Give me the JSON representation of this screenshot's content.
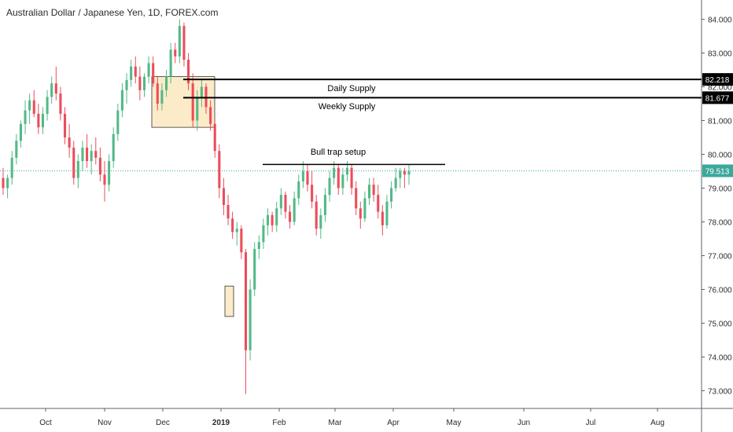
{
  "chart_title": "Australian Dollar / Japanese Yen, 1D, FOREX.com",
  "colors": {
    "up": "#53b987",
    "down": "#eb4d5c",
    "zone_fill": "#fbe8c0",
    "line": "#000000",
    "last_price_line": "#3aa89b",
    "axis_text": "#2b2b2b"
  },
  "chart_data": {
    "type": "candlestick",
    "title": "Australian Dollar / Japanese Yen, 1D, FOREX.com",
    "ylim": [
      72.3,
      84.45
    ],
    "y_ticks": [
      "84.000",
      "83.000",
      "82.000",
      "81.000",
      "80.000",
      "79.000",
      "78.000",
      "77.000",
      "76.000",
      "75.000",
      "74.000",
      "73.000"
    ],
    "x_ticks": [
      "Oct",
      "Nov",
      "Dec",
      "2019",
      "Feb",
      "Mar",
      "Apr",
      "May",
      "Jun",
      "Jul",
      "Aug"
    ],
    "grid": false,
    "price_labels": [
      {
        "text": "82.218",
        "value": 82.218,
        "style": "dark"
      },
      {
        "text": "81.677",
        "value": 81.677,
        "style": "dark"
      },
      {
        "text": "79.513",
        "value": 79.513,
        "style": "teal"
      }
    ],
    "annotations": [
      {
        "text": "Daily Supply",
        "level": 82.218
      },
      {
        "text": "Weekly Supply",
        "level": 81.677
      },
      {
        "text": "Bull trap setup",
        "level": 79.7
      }
    ],
    "zones": [
      {
        "from": "Dec",
        "to": "Dec",
        "low": 80.8,
        "high": 82.3
      },
      {
        "from": "2019",
        "to": "2019",
        "low": 75.2,
        "high": 76.1
      }
    ],
    "ohlc": [
      [
        79.3,
        79.6,
        78.8,
        79.0
      ],
      [
        79.0,
        79.4,
        78.7,
        79.3
      ],
      [
        79.3,
        80.1,
        79.1,
        79.9
      ],
      [
        79.9,
        80.6,
        79.7,
        80.4
      ],
      [
        80.4,
        81.0,
        80.2,
        80.9
      ],
      [
        80.9,
        81.6,
        80.6,
        81.3
      ],
      [
        81.3,
        81.8,
        80.9,
        81.6
      ],
      [
        81.6,
        81.9,
        81.1,
        81.2
      ],
      [
        81.2,
        81.5,
        80.6,
        80.8
      ],
      [
        80.8,
        81.4,
        80.6,
        81.2
      ],
      [
        81.2,
        81.9,
        81.0,
        81.7
      ],
      [
        81.7,
        82.3,
        81.5,
        82.1
      ],
      [
        82.1,
        82.6,
        81.6,
        81.8
      ],
      [
        81.8,
        82.0,
        81.0,
        81.2
      ],
      [
        81.2,
        81.4,
        80.3,
        80.5
      ],
      [
        80.5,
        80.9,
        79.9,
        80.2
      ],
      [
        80.2,
        80.4,
        79.1,
        79.3
      ],
      [
        79.3,
        80.0,
        79.0,
        79.8
      ],
      [
        79.8,
        80.4,
        79.5,
        80.2
      ],
      [
        80.2,
        80.6,
        79.6,
        79.8
      ],
      [
        79.8,
        80.3,
        79.4,
        80.1
      ],
      [
        80.1,
        80.5,
        79.7,
        79.9
      ],
      [
        79.9,
        80.2,
        79.2,
        79.4
      ],
      [
        79.4,
        79.8,
        78.6,
        79.1
      ],
      [
        79.1,
        80.0,
        78.9,
        79.8
      ],
      [
        79.8,
        80.8,
        79.6,
        80.6
      ],
      [
        80.6,
        81.5,
        80.4,
        81.3
      ],
      [
        81.3,
        82.1,
        81.1,
        81.9
      ],
      [
        81.9,
        82.4,
        81.5,
        82.2
      ],
      [
        82.2,
        82.8,
        82.0,
        82.6
      ],
      [
        82.6,
        82.9,
        82.1,
        82.3
      ],
      [
        82.3,
        82.6,
        81.6,
        81.9
      ],
      [
        81.9,
        82.4,
        81.7,
        82.3
      ],
      [
        82.3,
        82.9,
        82.1,
        82.7
      ],
      [
        82.7,
        82.9,
        82.0,
        82.1
      ],
      [
        82.1,
        82.3,
        81.3,
        81.5
      ],
      [
        81.5,
        82.1,
        81.3,
        81.9
      ],
      [
        81.9,
        82.5,
        81.7,
        82.3
      ],
      [
        82.3,
        83.3,
        82.1,
        83.1
      ],
      [
        83.1,
        83.3,
        82.7,
        82.9
      ],
      [
        82.9,
        84.0,
        82.7,
        83.8
      ],
      [
        83.8,
        83.9,
        82.6,
        82.8
      ],
      [
        82.8,
        83.0,
        81.9,
        82.1
      ],
      [
        82.1,
        82.4,
        80.8,
        81.0
      ],
      [
        81.0,
        81.9,
        80.7,
        81.7
      ],
      [
        81.7,
        82.2,
        81.4,
        82.0
      ],
      [
        82.0,
        82.1,
        81.2,
        81.4
      ],
      [
        81.4,
        81.6,
        80.7,
        80.9
      ],
      [
        80.9,
        81.0,
        79.9,
        80.1
      ],
      [
        80.1,
        80.3,
        78.7,
        79.0
      ],
      [
        79.0,
        79.3,
        78.2,
        78.5
      ],
      [
        78.5,
        78.8,
        77.9,
        78.1
      ],
      [
        78.1,
        78.3,
        77.5,
        77.7
      ],
      [
        77.7,
        78.0,
        77.3,
        77.8
      ],
      [
        77.8,
        77.9,
        76.9,
        77.1
      ],
      [
        77.1,
        77.2,
        72.9,
        74.2
      ],
      [
        74.2,
        76.3,
        73.9,
        76.0
      ],
      [
        76.0,
        77.4,
        75.8,
        77.2
      ],
      [
        77.2,
        77.6,
        76.9,
        77.4
      ],
      [
        77.4,
        78.1,
        77.2,
        77.9
      ],
      [
        77.9,
        78.4,
        77.6,
        78.2
      ],
      [
        78.2,
        78.3,
        77.7,
        77.9
      ],
      [
        77.9,
        78.6,
        77.7,
        78.4
      ],
      [
        78.4,
        79.0,
        78.2,
        78.8
      ],
      [
        78.8,
        78.9,
        78.1,
        78.3
      ],
      [
        78.3,
        78.5,
        77.8,
        78.0
      ],
      [
        78.0,
        78.9,
        77.9,
        78.7
      ],
      [
        78.7,
        79.4,
        78.5,
        79.2
      ],
      [
        79.2,
        79.8,
        79.0,
        79.5
      ],
      [
        79.5,
        79.7,
        78.9,
        79.1
      ],
      [
        79.1,
        79.5,
        78.4,
        78.6
      ],
      [
        78.6,
        78.8,
        77.6,
        77.8
      ],
      [
        77.8,
        78.4,
        77.5,
        78.2
      ],
      [
        78.2,
        79.0,
        78.0,
        78.8
      ],
      [
        78.8,
        79.5,
        78.6,
        79.3
      ],
      [
        79.3,
        79.8,
        79.1,
        79.6
      ],
      [
        79.6,
        79.7,
        78.8,
        79.0
      ],
      [
        79.0,
        79.6,
        78.8,
        79.4
      ],
      [
        79.4,
        79.8,
        79.2,
        79.6
      ],
      [
        79.6,
        79.7,
        78.8,
        79.0
      ],
      [
        79.0,
        79.2,
        78.2,
        78.4
      ],
      [
        78.4,
        78.6,
        77.8,
        78.1
      ],
      [
        78.1,
        78.9,
        78.0,
        78.7
      ],
      [
        78.7,
        79.3,
        78.5,
        79.1
      ],
      [
        79.1,
        79.3,
        78.6,
        78.8
      ],
      [
        78.8,
        79.1,
        78.1,
        78.3
      ],
      [
        78.3,
        78.5,
        77.6,
        77.9
      ],
      [
        77.9,
        78.8,
        77.8,
        78.6
      ],
      [
        78.6,
        79.2,
        78.4,
        79.0
      ],
      [
        79.0,
        79.6,
        78.9,
        79.3
      ],
      [
        79.3,
        79.6,
        79.0,
        79.5
      ],
      [
        79.5,
        79.6,
        79.0,
        79.4
      ],
      [
        79.4,
        79.7,
        79.1,
        79.5
      ]
    ]
  }
}
